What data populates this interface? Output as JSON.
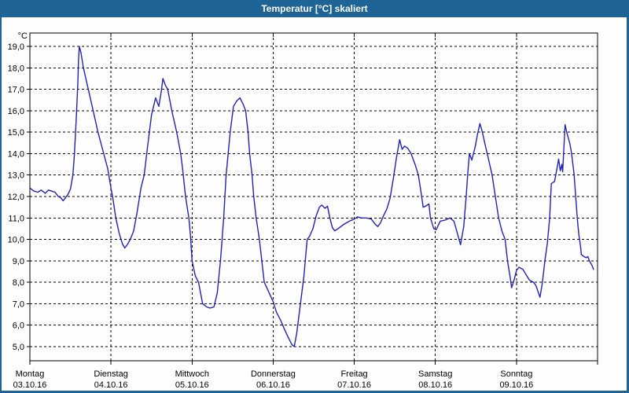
{
  "window": {
    "title": "Temperatur [°C] skaliert"
  },
  "colors": {
    "titlebar_bg": "#1e6496",
    "titlebar_text": "#ffffff",
    "frame": "#1e6496",
    "background": "#fdfefd",
    "grid": "#000000",
    "line": "#2222bb"
  },
  "chart_data": {
    "type": "line",
    "title": "Temperatur [°C] skaliert",
    "ylabel_unit": "°C",
    "ylim": [
      5,
      19
    ],
    "xlim_days": [
      0,
      7
    ],
    "grid": "dashed",
    "legend": "none",
    "yticks": [
      {
        "value": 19,
        "label": "19,0"
      },
      {
        "value": 18,
        "label": "18,0"
      },
      {
        "value": 17,
        "label": "17,0"
      },
      {
        "value": 16,
        "label": "16,0"
      },
      {
        "value": 15,
        "label": "15,0"
      },
      {
        "value": 14,
        "label": "14,0"
      },
      {
        "value": 13,
        "label": "13,0"
      },
      {
        "value": 12,
        "label": "12,0"
      },
      {
        "value": 11,
        "label": "11,0"
      },
      {
        "value": 10,
        "label": "10,0"
      },
      {
        "value": 9,
        "label": "9,0"
      },
      {
        "value": 8,
        "label": "8,0"
      },
      {
        "value": 7,
        "label": "7,0"
      },
      {
        "value": 6,
        "label": "6,0"
      },
      {
        "value": 5,
        "label": "5,0"
      }
    ],
    "x_axis_days": [
      {
        "weekday": "Montag",
        "date": "03.10.16"
      },
      {
        "weekday": "Dienstag",
        "date": "04.10.16"
      },
      {
        "weekday": "Mittwoch",
        "date": "05.10.16"
      },
      {
        "weekday": "Donnerstag",
        "date": "06.10.16"
      },
      {
        "weekday": "Freitag",
        "date": "07.10.16"
      },
      {
        "weekday": "Samstag",
        "date": "08.10.16"
      },
      {
        "weekday": "Sonntag",
        "date": "09.10.16"
      }
    ],
    "series": [
      {
        "name": "Temperatur [°C]",
        "color": "#2222bb",
        "points": [
          [
            0.0,
            12.4
          ],
          [
            0.05,
            12.25
          ],
          [
            0.1,
            12.2
          ],
          [
            0.14,
            12.3
          ],
          [
            0.19,
            12.15
          ],
          [
            0.23,
            12.3
          ],
          [
            0.27,
            12.25
          ],
          [
            0.31,
            12.2
          ],
          [
            0.35,
            12.0
          ],
          [
            0.38,
            11.95
          ],
          [
            0.41,
            11.8
          ],
          [
            0.44,
            11.95
          ],
          [
            0.47,
            12.1
          ],
          [
            0.5,
            12.35
          ],
          [
            0.53,
            13.0
          ],
          [
            0.55,
            14.0
          ],
          [
            0.57,
            15.5
          ],
          [
            0.59,
            17.2
          ],
          [
            0.6,
            18.4
          ],
          [
            0.61,
            19.0
          ],
          [
            0.63,
            18.7
          ],
          [
            0.66,
            18.0
          ],
          [
            0.72,
            17.0
          ],
          [
            0.78,
            16.0
          ],
          [
            0.84,
            15.0
          ],
          [
            0.91,
            14.0
          ],
          [
            0.96,
            13.3
          ],
          [
            1.0,
            12.4
          ],
          [
            1.02,
            12.0
          ],
          [
            1.06,
            11.0
          ],
          [
            1.1,
            10.3
          ],
          [
            1.14,
            9.8
          ],
          [
            1.17,
            9.6
          ],
          [
            1.21,
            9.8
          ],
          [
            1.25,
            10.1
          ],
          [
            1.28,
            10.4
          ],
          [
            1.32,
            11.2
          ],
          [
            1.37,
            12.4
          ],
          [
            1.41,
            13.0
          ],
          [
            1.45,
            14.3
          ],
          [
            1.5,
            15.8
          ],
          [
            1.55,
            16.6
          ],
          [
            1.59,
            16.2
          ],
          [
            1.62,
            16.9
          ],
          [
            1.64,
            17.5
          ],
          [
            1.67,
            17.2
          ],
          [
            1.7,
            17.0
          ],
          [
            1.75,
            16.0
          ],
          [
            1.81,
            15.0
          ],
          [
            1.86,
            14.0
          ],
          [
            1.88,
            13.4
          ],
          [
            1.92,
            12.0
          ],
          [
            1.96,
            11.0
          ],
          [
            1.98,
            10.2
          ],
          [
            2.0,
            9.0
          ],
          [
            2.04,
            8.3
          ],
          [
            2.08,
            8.0
          ],
          [
            2.13,
            7.0
          ],
          [
            2.18,
            6.85
          ],
          [
            2.22,
            6.8
          ],
          [
            2.27,
            6.85
          ],
          [
            2.31,
            7.5
          ],
          [
            2.35,
            9.0
          ],
          [
            2.39,
            11.0
          ],
          [
            2.42,
            13.0
          ],
          [
            2.47,
            15.0
          ],
          [
            2.51,
            16.2
          ],
          [
            2.55,
            16.45
          ],
          [
            2.59,
            16.6
          ],
          [
            2.63,
            16.3
          ],
          [
            2.66,
            16.0
          ],
          [
            2.69,
            15.0
          ],
          [
            2.71,
            14.0
          ],
          [
            2.74,
            13.0
          ],
          [
            2.76,
            12.0
          ],
          [
            2.79,
            11.0
          ],
          [
            2.83,
            10.0
          ],
          [
            2.86,
            9.0
          ],
          [
            2.89,
            8.0
          ],
          [
            2.94,
            7.6
          ],
          [
            3.0,
            7.1
          ],
          [
            3.04,
            6.6
          ],
          [
            3.09,
            6.25
          ],
          [
            3.14,
            5.8
          ],
          [
            3.19,
            5.4
          ],
          [
            3.23,
            5.1
          ],
          [
            3.26,
            5.0
          ],
          [
            3.29,
            5.6
          ],
          [
            3.32,
            6.5
          ],
          [
            3.35,
            7.4
          ],
          [
            3.38,
            8.3
          ],
          [
            3.4,
            9.2
          ],
          [
            3.42,
            10.0
          ],
          [
            3.45,
            10.15
          ],
          [
            3.49,
            10.5
          ],
          [
            3.53,
            11.1
          ],
          [
            3.57,
            11.5
          ],
          [
            3.6,
            11.6
          ],
          [
            3.64,
            11.45
          ],
          [
            3.67,
            11.55
          ],
          [
            3.7,
            11.0
          ],
          [
            3.73,
            10.55
          ],
          [
            3.76,
            10.4
          ],
          [
            3.8,
            10.5
          ],
          [
            3.87,
            10.7
          ],
          [
            3.94,
            10.85
          ],
          [
            4.0,
            10.95
          ],
          [
            4.04,
            11.05
          ],
          [
            4.09,
            11.0
          ],
          [
            4.15,
            11.0
          ],
          [
            4.21,
            10.95
          ],
          [
            4.26,
            10.7
          ],
          [
            4.29,
            10.6
          ],
          [
            4.32,
            10.75
          ],
          [
            4.36,
            11.1
          ],
          [
            4.4,
            11.4
          ],
          [
            4.44,
            11.9
          ],
          [
            4.48,
            12.8
          ],
          [
            4.52,
            13.8
          ],
          [
            4.56,
            14.65
          ],
          [
            4.59,
            14.2
          ],
          [
            4.62,
            14.35
          ],
          [
            4.66,
            14.25
          ],
          [
            4.7,
            14.0
          ],
          [
            4.75,
            13.5
          ],
          [
            4.79,
            13.0
          ],
          [
            4.82,
            12.3
          ],
          [
            4.85,
            11.5
          ],
          [
            4.88,
            11.55
          ],
          [
            4.92,
            11.65
          ],
          [
            4.94,
            11.0
          ],
          [
            4.98,
            10.5
          ],
          [
            5.01,
            10.45
          ],
          [
            5.06,
            10.85
          ],
          [
            5.12,
            10.9
          ],
          [
            5.18,
            11.0
          ],
          [
            5.23,
            10.85
          ],
          [
            5.27,
            10.3
          ],
          [
            5.31,
            9.75
          ],
          [
            5.35,
            10.6
          ],
          [
            5.38,
            12.0
          ],
          [
            5.4,
            13.1
          ],
          [
            5.42,
            14.0
          ],
          [
            5.45,
            13.7
          ],
          [
            5.49,
            14.3
          ],
          [
            5.52,
            14.9
          ],
          [
            5.55,
            15.4
          ],
          [
            5.58,
            15.0
          ],
          [
            5.62,
            14.3
          ],
          [
            5.64,
            14.0
          ],
          [
            5.7,
            13.0
          ],
          [
            5.74,
            12.0
          ],
          [
            5.78,
            11.0
          ],
          [
            5.82,
            10.4
          ],
          [
            5.86,
            10.0
          ],
          [
            5.89,
            9.0
          ],
          [
            5.92,
            8.3
          ],
          [
            5.94,
            7.75
          ],
          [
            5.97,
            8.1
          ],
          [
            6.0,
            8.55
          ],
          [
            6.03,
            8.7
          ],
          [
            6.08,
            8.6
          ],
          [
            6.12,
            8.35
          ],
          [
            6.16,
            8.1
          ],
          [
            6.21,
            8.0
          ],
          [
            6.24,
            7.85
          ],
          [
            6.29,
            7.3
          ],
          [
            6.32,
            8.0
          ],
          [
            6.35,
            9.0
          ],
          [
            6.38,
            9.8
          ],
          [
            6.41,
            11.0
          ],
          [
            6.43,
            12.6
          ],
          [
            6.47,
            12.7
          ],
          [
            6.5,
            13.3
          ],
          [
            6.52,
            13.75
          ],
          [
            6.54,
            13.2
          ],
          [
            6.56,
            13.5
          ],
          [
            6.57,
            13.15
          ],
          [
            6.6,
            15.35
          ],
          [
            6.62,
            15.0
          ],
          [
            6.66,
            14.45
          ],
          [
            6.68,
            14.0
          ],
          [
            6.71,
            13.05
          ],
          [
            6.73,
            12.0
          ],
          [
            6.75,
            11.0
          ],
          [
            6.77,
            10.2
          ],
          [
            6.79,
            9.7
          ],
          [
            6.8,
            9.3
          ],
          [
            6.83,
            9.2
          ],
          [
            6.86,
            9.15
          ],
          [
            6.88,
            9.2
          ],
          [
            6.9,
            9.0
          ],
          [
            6.93,
            8.8
          ],
          [
            6.95,
            8.6
          ]
        ]
      }
    ]
  }
}
